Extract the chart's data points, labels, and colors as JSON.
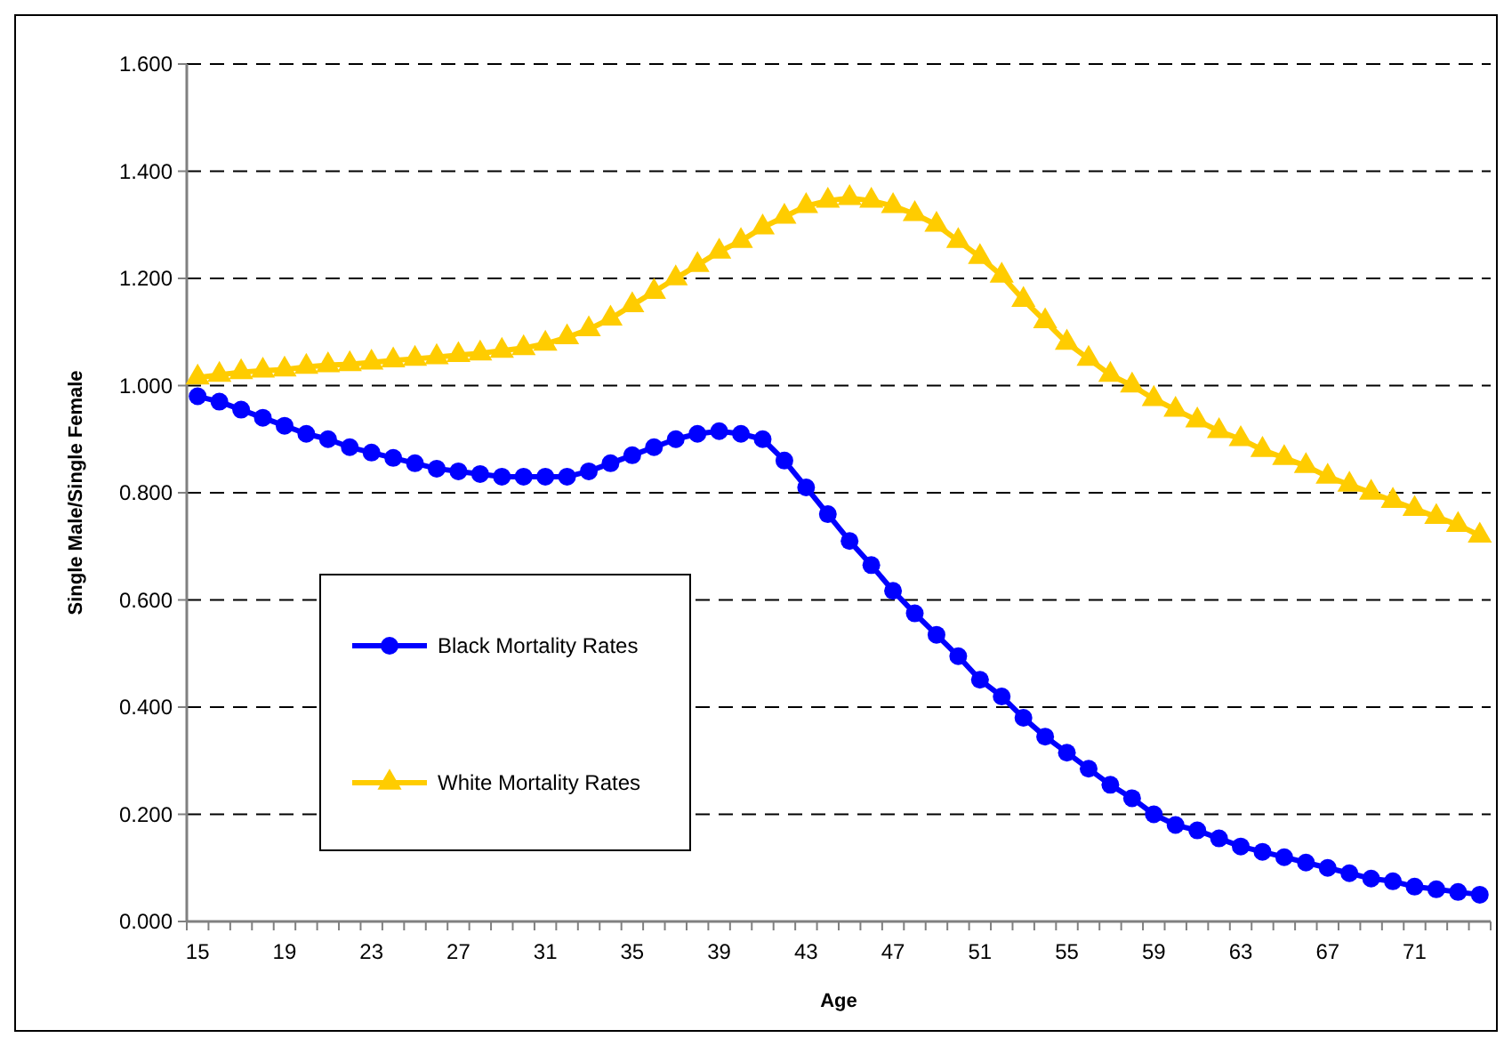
{
  "chart_data": {
    "type": "line",
    "xlabel": "Age",
    "ylabel": "Single Male/Single Female",
    "categories": [
      "15",
      null,
      null,
      null,
      "19",
      null,
      null,
      null,
      "23",
      null,
      null,
      null,
      "27",
      null,
      null,
      null,
      "31",
      null,
      null,
      null,
      "35",
      null,
      null,
      null,
      "39",
      null,
      null,
      null,
      "43",
      null,
      null,
      null,
      "47",
      null,
      null,
      null,
      "51",
      null,
      null,
      null,
      "55",
      null,
      null,
      null,
      "59",
      null,
      null,
      null,
      "63",
      null,
      null,
      null,
      "67",
      null,
      null,
      null,
      "71",
      null,
      null,
      null
    ],
    "series": [
      {
        "name": "Black Mortality Rates",
        "color": "#0000ff",
        "marker": "circle",
        "values": [
          0.98,
          0.97,
          0.955,
          0.94,
          0.925,
          0.91,
          0.9,
          0.885,
          0.875,
          0.865,
          0.855,
          0.845,
          0.84,
          0.835,
          0.83,
          0.83,
          0.83,
          0.83,
          0.84,
          0.855,
          0.87,
          0.885,
          0.9,
          0.91,
          0.915,
          0.91,
          0.9,
          0.86,
          0.81,
          0.76,
          0.71,
          0.665,
          0.617,
          0.575,
          0.535,
          0.495,
          0.451,
          0.42,
          0.38,
          0.345,
          0.315,
          0.285,
          0.255,
          0.23,
          0.2,
          0.18,
          0.17,
          0.155,
          0.14,
          0.13,
          0.12,
          0.11,
          0.1,
          0.09,
          0.08,
          0.075,
          0.065,
          0.06,
          0.055,
          0.05
        ]
      },
      {
        "name": "White Mortality Rates",
        "color": "#ffcc00",
        "marker": "triangle",
        "values": [
          1.015,
          1.02,
          1.025,
          1.028,
          1.03,
          1.035,
          1.038,
          1.04,
          1.043,
          1.047,
          1.05,
          1.053,
          1.057,
          1.06,
          1.065,
          1.07,
          1.078,
          1.09,
          1.105,
          1.125,
          1.15,
          1.175,
          1.2,
          1.225,
          1.25,
          1.27,
          1.295,
          1.315,
          1.335,
          1.345,
          1.35,
          1.345,
          1.335,
          1.32,
          1.3,
          1.27,
          1.24,
          1.205,
          1.16,
          1.12,
          1.08,
          1.05,
          1.02,
          1.0,
          0.975,
          0.955,
          0.935,
          0.915,
          0.9,
          0.88,
          0.865,
          0.85,
          0.83,
          0.815,
          0.8,
          0.785,
          0.77,
          0.755,
          0.74,
          0.72
        ]
      }
    ],
    "ylim": [
      0,
      1.6
    ],
    "yticks": [
      {
        "value": 0,
        "label": "0.000"
      },
      {
        "value": 0.2,
        "label": "0.200"
      },
      {
        "value": 0.4,
        "label": "0.400"
      },
      {
        "value": 0.6,
        "label": "0.600"
      },
      {
        "value": 0.8,
        "label": "0.800"
      },
      {
        "value": 1,
        "label": "1.000"
      },
      {
        "value": 1.2,
        "label": "1.200"
      },
      {
        "value": 1.4,
        "label": "1.400"
      },
      {
        "value": 1.6,
        "label": "1.600"
      }
    ],
    "grid": "y",
    "legend": "bottom left",
    "line_style": "solid"
  }
}
